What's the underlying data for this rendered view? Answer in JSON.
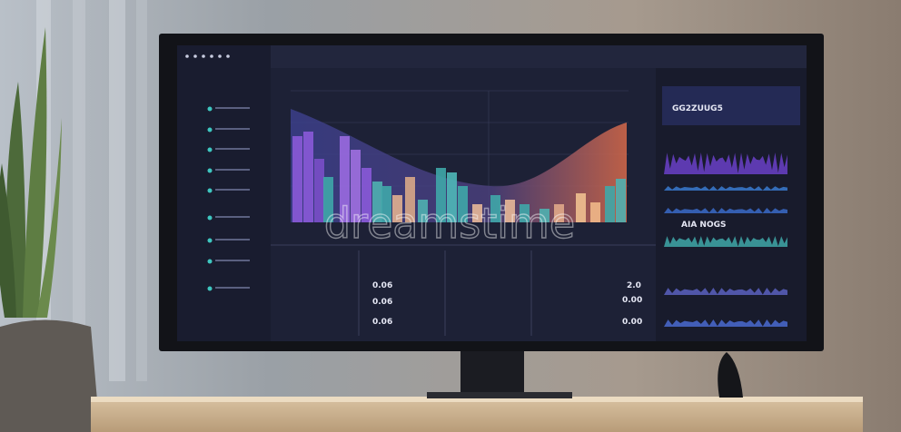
{
  "watermark": "dreamstime",
  "screen": {
    "panel_code": "GG2ZUUG5",
    "panel_title": "AIA NOGS",
    "stats": [
      "0.06",
      "0.06",
      "0.06"
    ],
    "right_values": [
      "2.0",
      "0.00",
      "0.00"
    ]
  }
}
